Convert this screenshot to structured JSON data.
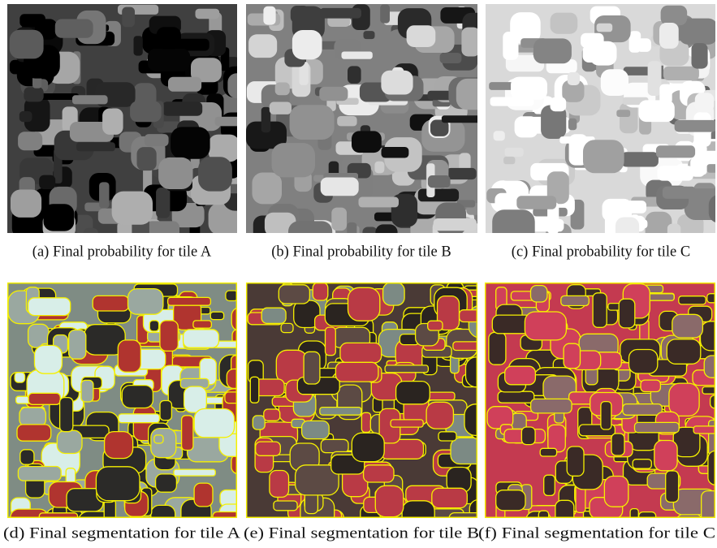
{
  "figure": {
    "panels": [
      {
        "caption": "(a) Final probability for tile A"
      },
      {
        "caption": "(b) Final probability for tile B"
      },
      {
        "caption": "(c) Final probability for tile C"
      },
      {
        "caption": "(d) Final segmentation for tile A"
      },
      {
        "caption": "(e) Final segmentation for tile B"
      },
      {
        "caption": "(f) Final segmentation for tile C"
      }
    ]
  }
}
